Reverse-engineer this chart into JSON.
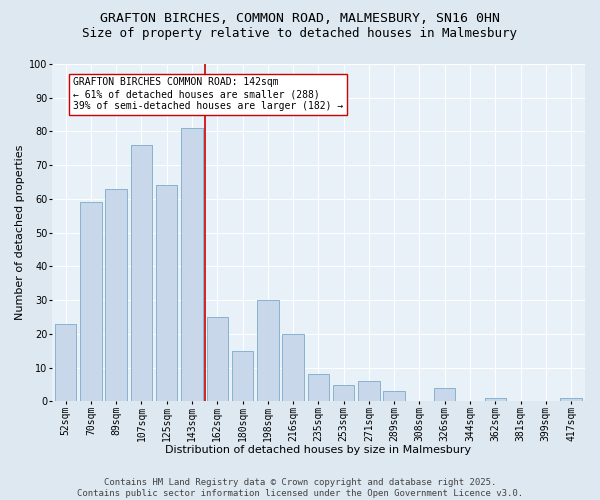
{
  "title_line1": "GRAFTON BIRCHES, COMMON ROAD, MALMESBURY, SN16 0HN",
  "title_line2": "Size of property relative to detached houses in Malmesbury",
  "xlabel": "Distribution of detached houses by size in Malmesbury",
  "ylabel": "Number of detached properties",
  "categories": [
    "52sqm",
    "70sqm",
    "89sqm",
    "107sqm",
    "125sqm",
    "143sqm",
    "162sqm",
    "180sqm",
    "198sqm",
    "216sqm",
    "235sqm",
    "253sqm",
    "271sqm",
    "289sqm",
    "308sqm",
    "326sqm",
    "344sqm",
    "362sqm",
    "381sqm",
    "399sqm",
    "417sqm"
  ],
  "values": [
    23,
    59,
    63,
    76,
    64,
    81,
    25,
    15,
    30,
    20,
    8,
    5,
    6,
    3,
    0,
    4,
    0,
    1,
    0,
    0,
    1
  ],
  "bar_color": "#c8d8ea",
  "bar_edge_color": "#7aaac8",
  "vline_color": "#cc0000",
  "vline_index": 5.5,
  "annotation_text": "GRAFTON BIRCHES COMMON ROAD: 142sqm\n← 61% of detached houses are smaller (288)\n39% of semi-detached houses are larger (182) →",
  "annotation_box_facecolor": "#ffffff",
  "annotation_box_edgecolor": "#cc0000",
  "ylim": [
    0,
    100
  ],
  "yticks": [
    0,
    10,
    20,
    30,
    40,
    50,
    60,
    70,
    80,
    90,
    100
  ],
  "bg_color": "#dde8f0",
  "plot_bg_color": "#e8f0f8",
  "footer_text": "Contains HM Land Registry data © Crown copyright and database right 2025.\nContains public sector information licensed under the Open Government Licence v3.0.",
  "title1_fontsize": 9.5,
  "title2_fontsize": 9,
  "axis_label_fontsize": 8,
  "tick_fontsize": 7,
  "annotation_fontsize": 7,
  "footer_fontsize": 6.5
}
